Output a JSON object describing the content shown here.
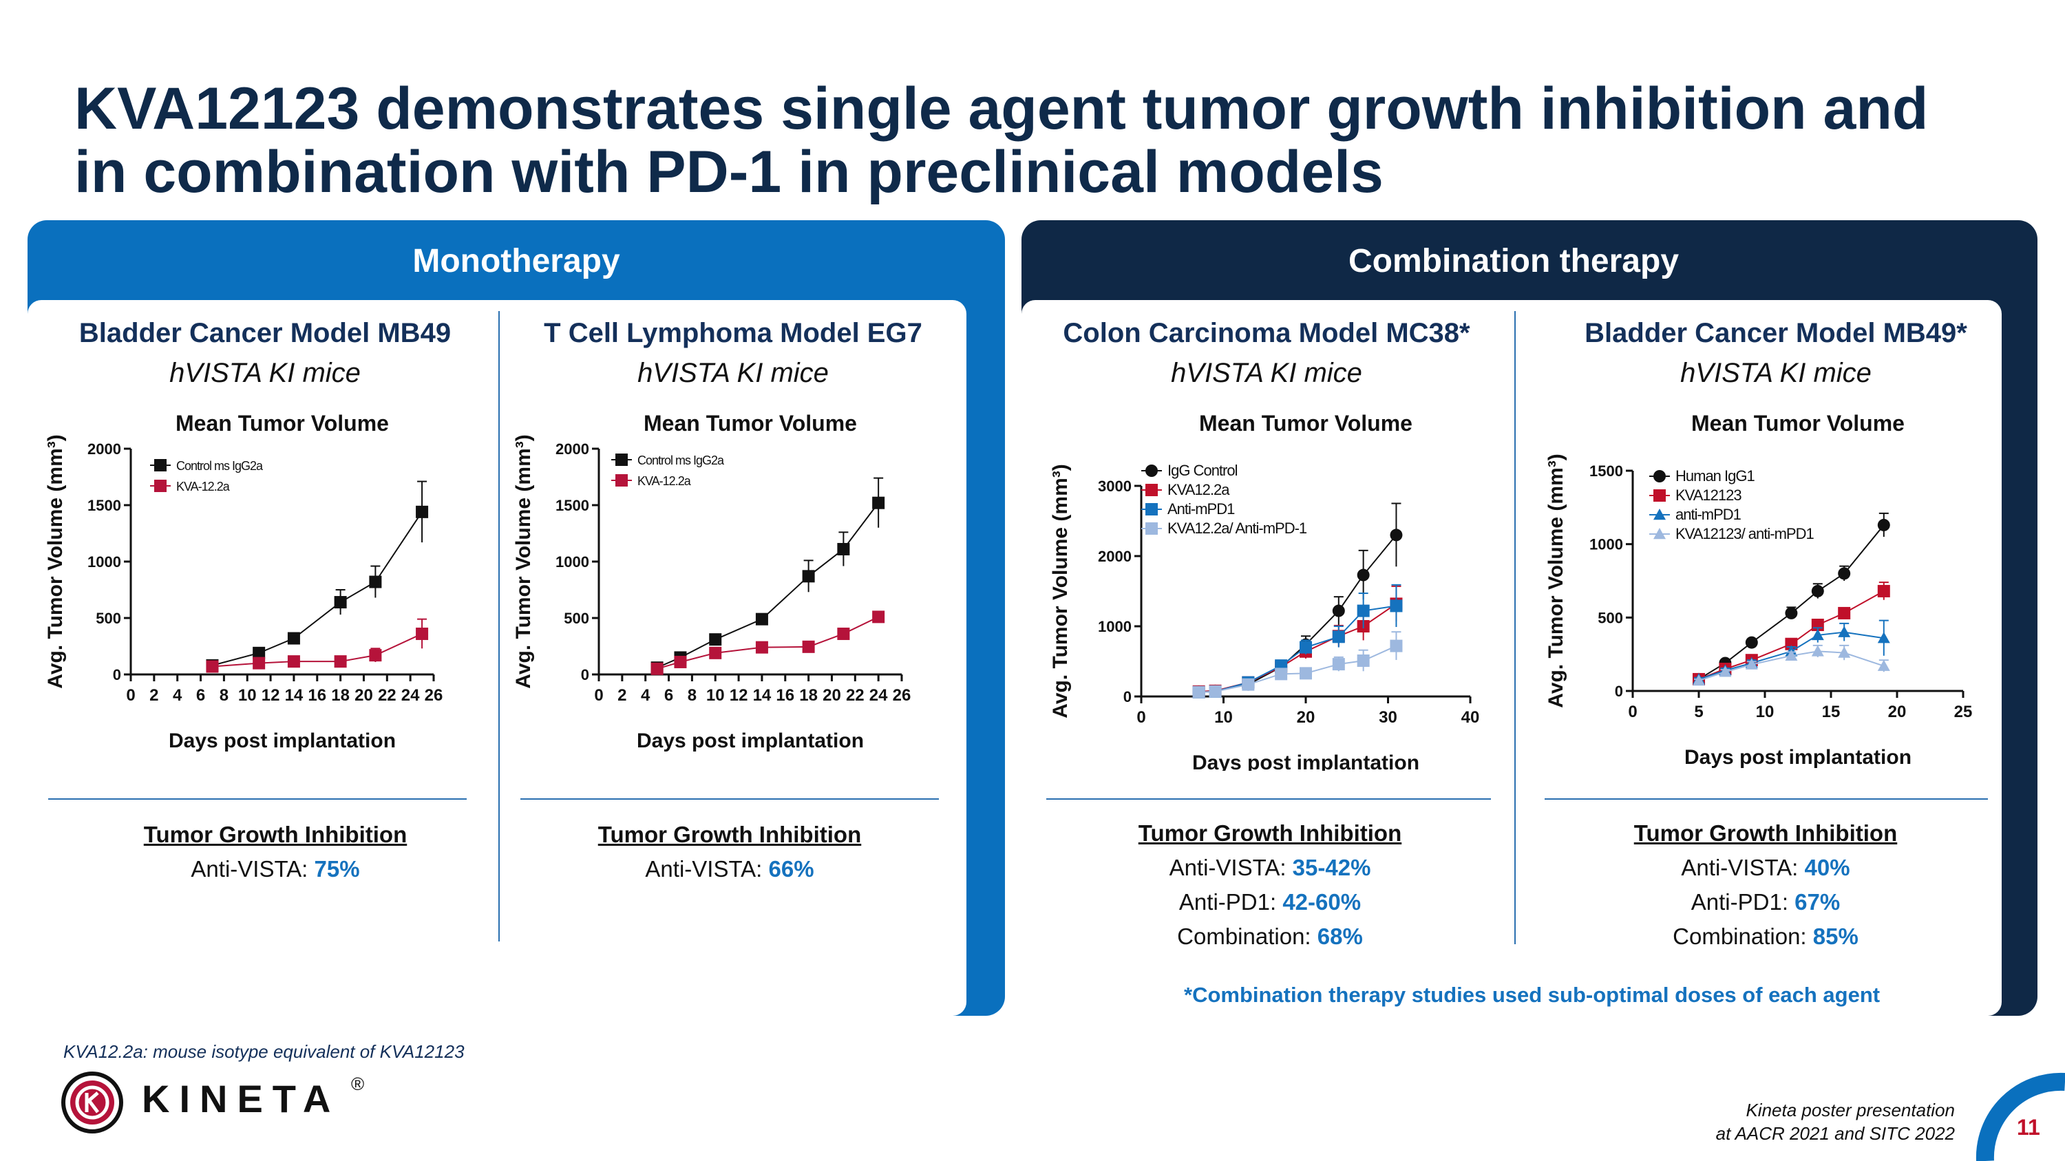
{
  "title_line1": "KVA12123 demonstrates single agent tumor growth inhibition and",
  "title_line2": "in combination with PD-1 in preclinical models",
  "panels": {
    "left_header": "Monotherapy",
    "right_header": "Combination therapy"
  },
  "studies": [
    {
      "model": "Bladder Cancer Model MB49",
      "mice": "hVISTA KI mice",
      "tgi_title": "Tumor Growth Inhibition",
      "tgi_rows": [
        {
          "label": "Anti-VISTA: ",
          "value": "75%"
        }
      ]
    },
    {
      "model": "T Cell Lymphoma Model EG7",
      "mice": "hVISTA KI mice",
      "tgi_title": "Tumor Growth Inhibition",
      "tgi_rows": [
        {
          "label": "Anti-VISTA: ",
          "value": "66%"
        }
      ]
    },
    {
      "model": "Colon Carcinoma Model MC38*",
      "mice": "hVISTA KI mice",
      "tgi_title": "Tumor Growth Inhibition",
      "tgi_rows": [
        {
          "label": "Anti-VISTA: ",
          "value": "35-42%"
        },
        {
          "label": "Anti-PD1: ",
          "value": "42-60%"
        },
        {
          "label": "Combination:  ",
          "value": "68%"
        }
      ]
    },
    {
      "model": "Bladder Cancer Model MB49*",
      "mice": "hVISTA KI mice",
      "tgi_title": "Tumor Growth Inhibition",
      "tgi_rows": [
        {
          "label": "Anti-VISTA: ",
          "value": "40%"
        },
        {
          "label": "Anti-PD1: ",
          "value": "67%"
        },
        {
          "label": "Combination:  ",
          "value": "85%"
        }
      ]
    }
  ],
  "chart_data": [
    {
      "type": "line",
      "title": "Mean Tumor Volume",
      "xlabel": "Days post implantation",
      "ylabel": "Avg. Tumor Volume (mm³)",
      "xlim": [
        0,
        26
      ],
      "ylim": [
        0,
        2000
      ],
      "xticks": [
        0,
        2,
        4,
        6,
        8,
        10,
        12,
        14,
        16,
        18,
        20,
        22,
        24,
        26
      ],
      "yticks": [
        0,
        500,
        1000,
        1500,
        2000
      ],
      "series": [
        {
          "name": "Control ms IgG2a",
          "color": "#111111",
          "marker": "square",
          "x": [
            7,
            11,
            14,
            18,
            21,
            25
          ],
          "y": [
            80,
            190,
            320,
            640,
            820,
            1440
          ],
          "err": [
            20,
            30,
            40,
            110,
            140,
            270
          ]
        },
        {
          "name": "KVA-12.2a",
          "color": "#b5133a",
          "marker": "square",
          "x": [
            7,
            11,
            14,
            18,
            21,
            25
          ],
          "y": [
            70,
            100,
            115,
            115,
            170,
            360
          ],
          "err": [
            10,
            15,
            20,
            25,
            60,
            130
          ]
        }
      ]
    },
    {
      "type": "line",
      "title": "Mean Tumor Volume",
      "xlabel": "Days post implantation",
      "ylabel": "Avg. Tumor Volume (mm³)",
      "xlim": [
        0,
        26
      ],
      "ylim": [
        0,
        2000
      ],
      "xticks": [
        0,
        2,
        4,
        6,
        8,
        10,
        12,
        14,
        16,
        18,
        20,
        22,
        24,
        26
      ],
      "yticks": [
        0,
        500,
        1000,
        1500,
        2000
      ],
      "series": [
        {
          "name": "Control ms IgG2a",
          "color": "#111111",
          "marker": "square",
          "x": [
            5,
            7,
            10,
            14,
            18,
            21,
            24
          ],
          "y": [
            60,
            150,
            310,
            490,
            870,
            1110,
            1520
          ],
          "err": [
            10,
            20,
            30,
            40,
            140,
            150,
            220
          ]
        },
        {
          "name": "KVA-12.2a",
          "color": "#b5133a",
          "marker": "square",
          "x": [
            5,
            7,
            10,
            14,
            18,
            21,
            24
          ],
          "y": [
            50,
            110,
            190,
            240,
            245,
            360,
            510
          ],
          "err": [
            8,
            12,
            20,
            25,
            25,
            30,
            40
          ]
        }
      ]
    },
    {
      "type": "line",
      "title": "Mean Tumor Volume",
      "xlabel": "Days post implantation",
      "ylabel": "Avg. Tumor Volume (mm³)",
      "xlim": [
        0,
        40
      ],
      "ylim": [
        0,
        3000
      ],
      "xticks": [
        0,
        10,
        20,
        30,
        40
      ],
      "yticks": [
        0,
        1000,
        2000,
        3000
      ],
      "series": [
        {
          "name": "IgG Control",
          "color": "#111111",
          "marker": "circle",
          "x": [
            7,
            9,
            13,
            17,
            20,
            24,
            27,
            31
          ],
          "y": [
            70,
            80,
            170,
            420,
            740,
            1220,
            1730,
            2300
          ],
          "err": [
            20,
            20,
            30,
            60,
            120,
            200,
            350,
            450
          ]
        },
        {
          "name": "KVA12.2a",
          "color": "#c0102a",
          "marker": "square",
          "x": [
            7,
            9,
            13,
            17,
            20,
            24,
            27,
            31
          ],
          "y": [
            70,
            80,
            200,
            420,
            640,
            860,
            1000,
            1320
          ],
          "err": [
            15,
            15,
            30,
            60,
            100,
            150,
            200,
            250
          ]
        },
        {
          "name": "Anti-mPD1",
          "color": "#1572be",
          "marker": "square",
          "x": [
            7,
            9,
            13,
            17,
            20,
            24,
            27,
            31
          ],
          "y": [
            60,
            70,
            200,
            440,
            700,
            850,
            1220,
            1290
          ],
          "err": [
            15,
            15,
            30,
            60,
            100,
            150,
            250,
            300
          ]
        },
        {
          "name": "KVA12.2a/ Anti-mPD-1",
          "color": "#9db8df",
          "marker": "square",
          "x": [
            7,
            9,
            13,
            17,
            20,
            24,
            27,
            31
          ],
          "y": [
            60,
            70,
            170,
            320,
            330,
            460,
            510,
            720
          ],
          "err": [
            15,
            15,
            25,
            40,
            60,
            100,
            150,
            200
          ]
        }
      ]
    },
    {
      "type": "line",
      "title": "Mean Tumor Volume",
      "xlabel": "Days post implantation",
      "ylabel": "Avg. Tumor Volume (mm³)",
      "xlim": [
        0,
        25
      ],
      "ylim": [
        0,
        1500
      ],
      "xticks": [
        0,
        5,
        10,
        15,
        20,
        25
      ],
      "yticks": [
        0,
        500,
        1000,
        1500
      ],
      "series": [
        {
          "name": "Human IgG1",
          "color": "#111111",
          "marker": "circle",
          "x": [
            5,
            7,
            9,
            12,
            14,
            16,
            19
          ],
          "y": [
            80,
            190,
            330,
            530,
            680,
            800,
            1130
          ],
          "err": [
            10,
            20,
            20,
            40,
            50,
            50,
            80
          ]
        },
        {
          "name": "KVA12123",
          "color": "#c0102a",
          "marker": "square",
          "x": [
            5,
            7,
            9,
            12,
            14,
            16,
            19
          ],
          "y": [
            80,
            150,
            210,
            320,
            450,
            530,
            680
          ],
          "err": [
            10,
            15,
            20,
            30,
            30,
            30,
            60
          ]
        },
        {
          "name": "anti-mPD1",
          "color": "#1572be",
          "marker": "triangle",
          "x": [
            5,
            7,
            9,
            12,
            14,
            16,
            19
          ],
          "y": [
            80,
            140,
            190,
            270,
            380,
            400,
            360
          ],
          "err": [
            10,
            15,
            20,
            30,
            50,
            60,
            120
          ]
        },
        {
          "name": "KVA12123/ anti-mPD1",
          "color": "#9db8df",
          "marker": "triangle",
          "x": [
            5,
            7,
            9,
            12,
            14,
            16,
            19
          ],
          "y": [
            70,
            130,
            180,
            240,
            270,
            260,
            170
          ],
          "err": [
            10,
            15,
            20,
            25,
            40,
            50,
            40
          ]
        }
      ]
    }
  ],
  "footnote": "*Combination therapy studies used sub-optimal doses of each agent",
  "isotype_note": "KVA12.2a: mouse isotype equivalent of KVA12123",
  "logo": {
    "text": "KINETA",
    "reg": "®"
  },
  "poster": {
    "line1": "Kineta poster presentation",
    "line2": "at AACR 2021 and SITC 2022"
  },
  "page_number": "11"
}
